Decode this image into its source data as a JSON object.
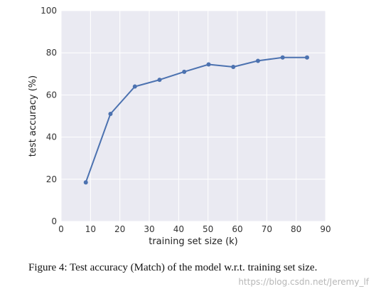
{
  "chart_data": {
    "type": "line",
    "xlabel": "training set size (k)",
    "ylabel": "test accuracy (%)",
    "xlim": [
      0,
      90
    ],
    "ylim": [
      0,
      100
    ],
    "xticks": [
      0,
      10,
      20,
      30,
      40,
      50,
      60,
      70,
      80,
      90
    ],
    "yticks": [
      0,
      20,
      40,
      60,
      80,
      100
    ],
    "grid": true,
    "series": [
      {
        "color": "#4c72b0",
        "x": [
          8.4,
          16.8,
          25.1,
          33.5,
          41.9,
          50.2,
          58.6,
          67.0,
          75.4,
          83.7
        ],
        "y": [
          18.5,
          51.0,
          64.0,
          67.2,
          71.0,
          74.5,
          73.3,
          76.2,
          77.8,
          77.8
        ]
      }
    ],
    "background_color": "#eaeaf2"
  },
  "caption": {
    "text": "Figure 4: Test accuracy (Match) of the model w.r.t. training set size."
  },
  "watermark": {
    "text": "https://blog.csdn.net/Jeremy_lf"
  }
}
